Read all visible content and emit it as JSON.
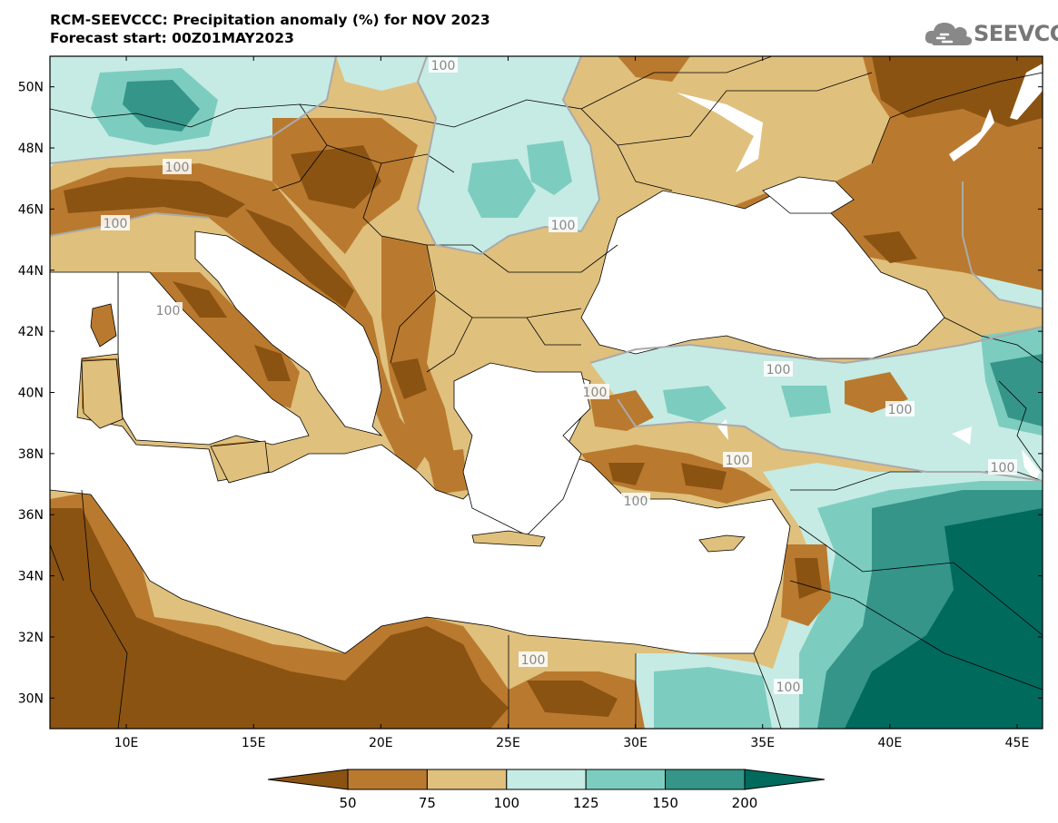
{
  "title": {
    "line1": "RCM-SEEVCCC: Precipitation anomaly (%) for NOV 2023",
    "line2": "Forecast start: 00Z01MAY2023"
  },
  "logo": {
    "text": "SEEVCCC",
    "icon": "cloud-icon"
  },
  "map": {
    "lon_range": [
      7,
      46
    ],
    "lat_range": [
      29,
      51
    ],
    "x_ticks": [
      "10E",
      "15E",
      "20E",
      "25E",
      "30E",
      "35E",
      "40E",
      "45E"
    ],
    "y_ticks": [
      "50N",
      "48N",
      "46N",
      "44N",
      "42N",
      "40N",
      "38N",
      "36N",
      "34N",
      "32N",
      "30N"
    ],
    "contour_labels": [
      "100",
      "100",
      "100",
      "100",
      "100",
      "100",
      "100",
      "100",
      "100",
      "100",
      "100",
      "100",
      "100"
    ]
  },
  "colorbar": {
    "levels": [
      "50",
      "75",
      "100",
      "125",
      "150",
      "200"
    ],
    "colors": [
      "#8b5312",
      "#b97a2f",
      "#dfc07d",
      "#c6ebe4",
      "#7ccdbf",
      "#359589",
      "#006a5d"
    ]
  }
}
